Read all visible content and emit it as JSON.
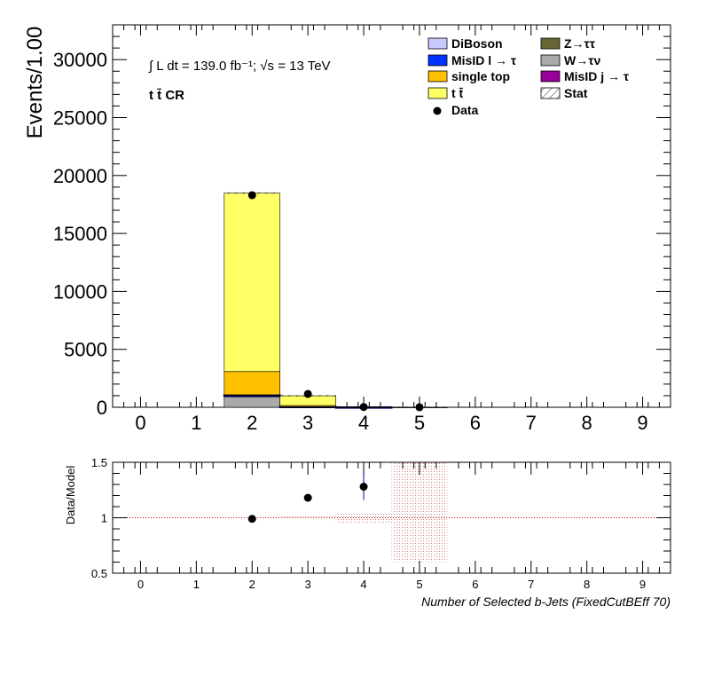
{
  "chart_data": [
    {
      "type": "bar",
      "stacked": true,
      "ylabel": "Events/1.00",
      "ylim": [
        0,
        33000
      ],
      "xlim": [
        -0.5,
        9.5
      ],
      "yticks": [
        "0",
        "5000",
        "10000",
        "15000",
        "20000",
        "25000",
        "30000"
      ],
      "xticks": [
        "0",
        "1",
        "2",
        "3",
        "4",
        "5",
        "6",
        "7",
        "8",
        "9"
      ],
      "annotation_lumi": "∫ L dt = 139.0 fb⁻¹;  √s = 13 TeV",
      "annotation_region": "t t̄ CR",
      "categories": [
        0,
        1,
        2,
        3,
        4,
        5,
        6,
        7,
        8,
        9
      ],
      "series": [
        {
          "name": "DiBoson",
          "color": "#c8c8ff",
          "values": [
            0,
            0,
            30,
            5,
            0,
            0,
            0,
            0,
            0,
            0
          ]
        },
        {
          "name": "MisID l → τ",
          "color": "#0033ff",
          "values": [
            0,
            0,
            80,
            10,
            1,
            0,
            0,
            0,
            0,
            0
          ]
        },
        {
          "name": "single top",
          "color": "#ffc000",
          "values": [
            0,
            0,
            2000,
            100,
            4,
            0,
            0,
            0,
            0,
            0
          ]
        },
        {
          "name": "t t̄",
          "color": "#ffff66",
          "values": [
            0,
            0,
            15400,
            840,
            12,
            1,
            0,
            0,
            0,
            0
          ]
        },
        {
          "name": "Z→ττ",
          "color": "#666633",
          "values": [
            0,
            0,
            20,
            2,
            0,
            0,
            0,
            0,
            0,
            0
          ]
        },
        {
          "name": "W→τν",
          "color": "#aaaaaa",
          "values": [
            0,
            0,
            900,
            30,
            0,
            0,
            0,
            0,
            0,
            0
          ]
        },
        {
          "name": "MisID j → τ",
          "color": "#990099",
          "values": [
            0,
            0,
            50,
            5,
            0,
            0,
            0,
            0,
            0,
            0
          ]
        }
      ],
      "data": {
        "name": "Data",
        "x": [
          2,
          3,
          4,
          5
        ],
        "values": [
          18300,
          1150,
          22,
          1
        ]
      },
      "stat_label": "Stat",
      "legend_position": "top-right"
    },
    {
      "type": "scatter",
      "ylabel": "Data/Model",
      "xlabel": "Number of Selected b-Jets (FixedCutBEff 70)",
      "ylim": [
        0.5,
        1.5
      ],
      "xlim": [
        -0.5,
        9.5
      ],
      "yticks": [
        "0.5",
        "1",
        "1.5"
      ],
      "xticks": [
        "0",
        "1",
        "2",
        "3",
        "4",
        "5",
        "6",
        "7",
        "8",
        "9"
      ],
      "points": [
        {
          "x": 2,
          "y": 0.99,
          "err": 0.01
        },
        {
          "x": 3,
          "y": 1.18,
          "err": 0.02
        },
        {
          "x": 4,
          "y": 1.28,
          "err": 0.12
        }
      ],
      "stat_band": [
        {
          "x": 2,
          "lo": 0.995,
          "hi": 1.005
        },
        {
          "x": 3,
          "lo": 0.99,
          "hi": 1.01
        },
        {
          "x": 4,
          "lo": 0.95,
          "hi": 1.05
        },
        {
          "x": 5,
          "lo": 0.6,
          "hi": 1.5
        }
      ]
    }
  ]
}
